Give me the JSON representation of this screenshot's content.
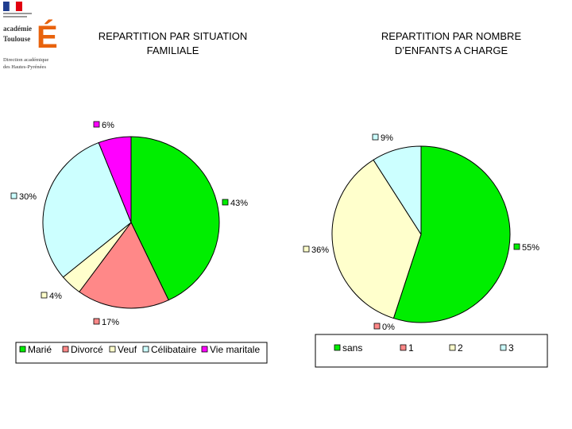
{
  "header": {
    "logo_lines": [
      "académie",
      "Toulouse",
      "Direction académique",
      "des Hautes-Pyrénées"
    ],
    "logo_letter": "É"
  },
  "chart_data": [
    {
      "type": "pie",
      "title": "REPARTITION PAR SITUATION FAMILIALE",
      "title_lines": [
        "REPARTITION PAR SITUATION",
        "FAMILIALE"
      ],
      "legend_position": "bottom",
      "categories": [
        "Marié",
        "Divorcé",
        "Veuf",
        "Célibataire",
        "Vie maritale"
      ],
      "values": [
        43,
        17,
        4,
        30,
        6
      ],
      "labels": [
        "43%",
        "17%",
        "4%",
        "30%",
        "6%"
      ],
      "colors": [
        "#00ee00",
        "#ff8888",
        "#ffffcc",
        "#ccffff",
        "#ff00ff"
      ]
    },
    {
      "type": "pie",
      "title": "REPARTITION PAR NOMBRE D’ENFANTS A CHARGE",
      "title_lines": [
        "REPARTITION PAR NOMBRE",
        "D’ENFANTS A CHARGE"
      ],
      "legend_position": "bottom",
      "categories": [
        "sans",
        "1",
        "2",
        "3"
      ],
      "values": [
        55,
        0,
        36,
        9
      ],
      "labels": [
        "55%",
        "0%",
        "36%",
        "9%"
      ],
      "colors": [
        "#00ee00",
        "#ff8888",
        "#ffffcc",
        "#ccffff"
      ]
    }
  ]
}
